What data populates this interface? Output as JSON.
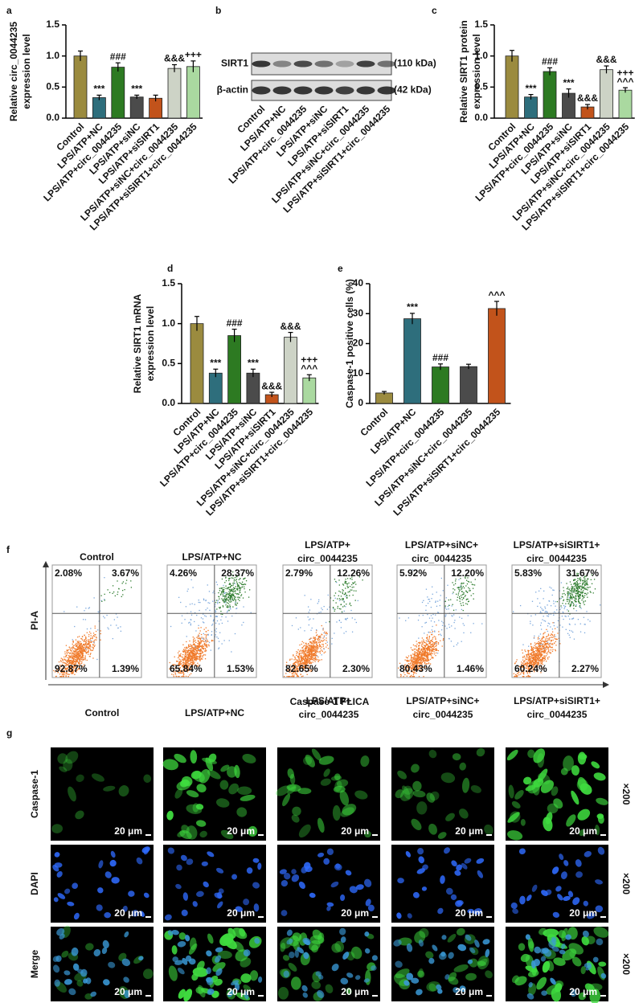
{
  "chart_data": [
    {
      "type": "bar",
      "panel": "a",
      "ylabel": [
        "Relative circ_0044235",
        "expression level"
      ],
      "categories": [
        "Control",
        "LPS/ATP+NC",
        "LPS/ATP+circ_0044235",
        "LPS/ATP+siNC",
        "LPS/ATP+siSIRT1",
        "LPS/ATP+siNC+circ_0044235",
        "LPS/ATP+siSIRT1+circ_0044235"
      ],
      "values": [
        1.0,
        0.33,
        0.82,
        0.34,
        0.32,
        0.8,
        0.83
      ],
      "errors": [
        0.08,
        0.04,
        0.07,
        0.03,
        0.05,
        0.06,
        0.09
      ],
      "annotations": [
        null,
        [
          "***"
        ],
        [
          "###"
        ],
        [
          "***"
        ],
        null,
        [
          "&&&"
        ],
        [
          "+++"
        ]
      ],
      "colors": [
        "#9b8b3f",
        "#2e6e7c",
        "#2d7a22",
        "#4b4b4b",
        "#c2531b",
        "#cdd3c6",
        "#aad9a0"
      ],
      "ylim": [
        0,
        1.5
      ],
      "yticks": [
        {
          "value": 0,
          "label": "0.0"
        },
        0.5,
        {
          "value": 1,
          "label": "1.0"
        },
        1.5
      ]
    },
    {
      "type": "bar",
      "panel": "c",
      "ylabel": [
        "Relative SIRT1 protein",
        "expression level"
      ],
      "categories": [
        "Control",
        "LPS/ATP+NC",
        "LPS/ATP+circ_0044235",
        "LPS/ATP+siNC",
        "LPS/ATP+siSIRT1",
        "LPS/ATP+siNC+circ_0044235",
        "LPS/ATP+siSIRT1+circ_0044235"
      ],
      "values": [
        1.0,
        0.34,
        0.75,
        0.4,
        0.18,
        0.78,
        0.45
      ],
      "errors": [
        0.09,
        0.04,
        0.06,
        0.07,
        0.04,
        0.06,
        0.04
      ],
      "annotations": [
        null,
        [
          "***"
        ],
        [
          "###"
        ],
        [
          "***"
        ],
        [
          "&&&"
        ],
        [
          "&&&"
        ],
        [
          "+++",
          "^^^"
        ]
      ],
      "colors": [
        "#9b8b3f",
        "#2e6e7c",
        "#2d7a22",
        "#4b4b4b",
        "#c2531b",
        "#cdd3c6",
        "#aad9a0"
      ],
      "ylim": [
        0,
        1.5
      ],
      "yticks": [
        {
          "value": 0,
          "label": "0.0"
        },
        0.5,
        {
          "value": 1,
          "label": "1.0"
        },
        1.5
      ]
    },
    {
      "type": "bar",
      "panel": "d",
      "ylabel": [
        "Relative SIRT1 mRNA",
        "expression level"
      ],
      "categories": [
        "Control",
        "LPS/ATP+NC",
        "LPS/ATP+circ_0044235",
        "LPS/ATP+siNC",
        "LPS/ATP+siSIRT1",
        "LPS/ATP+siNC+circ_0044235",
        "LPS/ATP+siSIRT1+circ_0044235"
      ],
      "values": [
        1.0,
        0.38,
        0.85,
        0.38,
        0.11,
        0.83,
        0.32
      ],
      "errors": [
        0.09,
        0.05,
        0.08,
        0.05,
        0.03,
        0.06,
        0.04
      ],
      "annotations": [
        null,
        [
          "***"
        ],
        [
          "###"
        ],
        [
          "***"
        ],
        [
          "&&&"
        ],
        [
          "&&&"
        ],
        [
          "+++",
          "^^^"
        ]
      ],
      "colors": [
        "#9b8b3f",
        "#2e6e7c",
        "#2d7a22",
        "#4b4b4b",
        "#c2531b",
        "#cdd3c6",
        "#aad9a0"
      ],
      "ylim": [
        0,
        1.5
      ],
      "yticks": [
        {
          "value": 0,
          "label": "0.0"
        },
        0.5,
        {
          "value": 1,
          "label": "1.0"
        },
        1.5
      ]
    },
    {
      "type": "bar",
      "panel": "e",
      "ylabel": [
        "Caspase-1 positive cells (%)"
      ],
      "categories": [
        "Control",
        "LPS/ATP+NC",
        "LPS/ATP+circ_0044235",
        "LPS/ATP+siNC+circ_0044235",
        "LPS/ATP+siSIRT1+circ_0044235"
      ],
      "values": [
        3.5,
        28.3,
        12.2,
        12.3,
        31.7
      ],
      "errors": [
        0.5,
        1.8,
        1.0,
        0.8,
        2.4
      ],
      "annotations": [
        null,
        [
          "***"
        ],
        [
          "###"
        ],
        null,
        [
          "^^^"
        ]
      ],
      "colors": [
        "#9b8b3f",
        "#2e6e7c",
        "#2d7a22",
        "#4b4b4b",
        "#c2531b"
      ],
      "ylim": [
        0,
        40
      ],
      "yticks": [
        0,
        10,
        20,
        30,
        40
      ]
    }
  ],
  "blot": {
    "panel": "b",
    "proteins": [
      {
        "name": "SIRT1",
        "size": "(110 kDa)"
      },
      {
        "name": "β-actin",
        "size": "(42 kDa)"
      }
    ],
    "lanes": [
      "Control",
      "LPS/ATP+NC",
      "LPS/ATP+circ_0044235",
      "LPS/ATP+siNC",
      "LPS/ATP+siSIRT1",
      "LPS/ATP+siNC+circ_0044235",
      "LPS/ATP+siSIRT1+circ_0044235"
    ]
  },
  "flow": {
    "panel": "f",
    "y_label": "PI-A",
    "x_label": "Caspase-1 FLICA",
    "groups": [
      {
        "title": [
          "Control"
        ],
        "quadrants": {
          "ul": "2.08%",
          "ur": "3.67%",
          "ll": "92.87%",
          "lr": "1.39%"
        }
      },
      {
        "title": [
          "LPS/ATP+NC"
        ],
        "quadrants": {
          "ul": "4.26%",
          "ur": "28.37%",
          "ll": "65.84%",
          "lr": "1.53%"
        }
      },
      {
        "title": [
          "LPS/ATP+",
          "circ_0044235"
        ],
        "quadrants": {
          "ul": "2.79%",
          "ur": "12.26%",
          "ll": "82.65%",
          "lr": "2.30%"
        }
      },
      {
        "title": [
          "LPS/ATP+siNC+",
          "circ_0044235"
        ],
        "quadrants": {
          "ul": "5.92%",
          "ur": "12.20%",
          "ll": "80.43%",
          "lr": "1.46%"
        }
      },
      {
        "title": [
          "LPS/ATP+siSIRT1+",
          "circ_0044235"
        ],
        "quadrants": {
          "ul": "5.83%",
          "ur": "31.67%",
          "ll": "60.24%",
          "lr": "2.27%"
        }
      }
    ]
  },
  "microscopy": {
    "panel": "g",
    "columns": [
      [
        "Control"
      ],
      [
        "LPS/ATP+NC"
      ],
      [
        "LPS/ATP+",
        "circ_0044235"
      ],
      [
        "LPS/ATP+siNC+",
        "circ_0044235"
      ],
      [
        "LPS/ATP+siSIRT1+",
        "circ_0044235"
      ]
    ],
    "rows": [
      "Caspase-1",
      "DAPI",
      "Merge"
    ],
    "scale": "20 μm",
    "magnification": "×200"
  }
}
